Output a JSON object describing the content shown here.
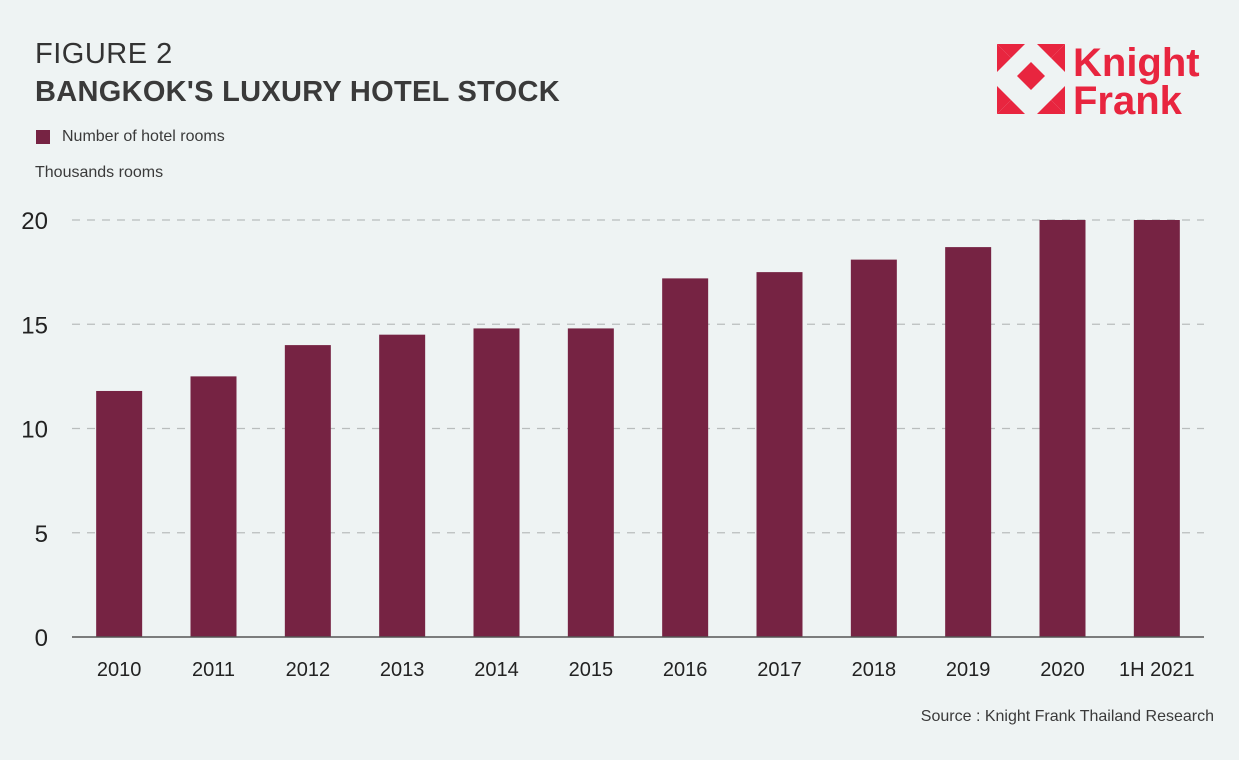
{
  "header": {
    "figure_label": "FIGURE 2",
    "title": "BANGKOK'S LUXURY HOTEL STOCK"
  },
  "logo": {
    "line1": "Knight",
    "line2": "Frank",
    "color": "#e8253f"
  },
  "legend": {
    "label": "Number of hotel rooms"
  },
  "unit_label": "Thousands rooms",
  "source": "Source : Knight Frank Thailand Research",
  "colors": {
    "bar": "#762343",
    "grid": "#b9bdbd",
    "axis": "#555555"
  },
  "chart_data": {
    "type": "bar",
    "categories": [
      "2010",
      "2011",
      "2012",
      "2013",
      "2014",
      "2015",
      "2016",
      "2017",
      "2018",
      "2019",
      "2020",
      "1H 2021"
    ],
    "series": [
      {
        "name": "Number of hotel rooms",
        "values": [
          11.8,
          12.5,
          14.0,
          14.5,
          14.8,
          14.8,
          17.2,
          17.5,
          18.1,
          18.7,
          20.0,
          20.0
        ]
      }
    ],
    "ylabel": "Thousands rooms",
    "ylim": [
      0,
      20
    ],
    "yticks": [
      0,
      5,
      10,
      15,
      20
    ],
    "grid": true,
    "legend_position": "top-left"
  }
}
